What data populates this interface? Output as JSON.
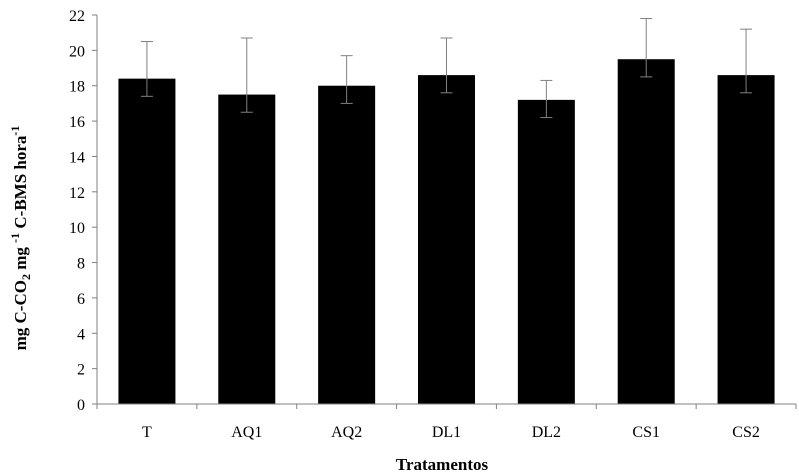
{
  "chart_data": {
    "type": "bar",
    "categories": [
      "T",
      "AQ1",
      "AQ2",
      "DL1",
      "DL2",
      "CS1",
      "CS2"
    ],
    "values": [
      18.4,
      17.5,
      18.0,
      18.6,
      17.2,
      19.5,
      18.6
    ],
    "error_upper": [
      20.5,
      20.7,
      19.7,
      20.7,
      18.3,
      21.8,
      21.2
    ],
    "error_lower": [
      17.4,
      16.5,
      17.0,
      17.6,
      16.2,
      18.5,
      17.6
    ],
    "ylim": [
      0,
      22
    ],
    "yticks": [
      0,
      2,
      4,
      6,
      8,
      10,
      12,
      14,
      16,
      18,
      20,
      22
    ],
    "xlabel": "Tratamentos",
    "ylabel": {
      "p1": "mg C-CO",
      "sub2": "2",
      "p2": " mg ",
      "sup1": "-1",
      "p3": " C-BMS hora",
      "sup2": "-1"
    },
    "grid": false,
    "bar_color": "#000000",
    "error_bar_color": "#808080",
    "axis_color": "#808080"
  }
}
